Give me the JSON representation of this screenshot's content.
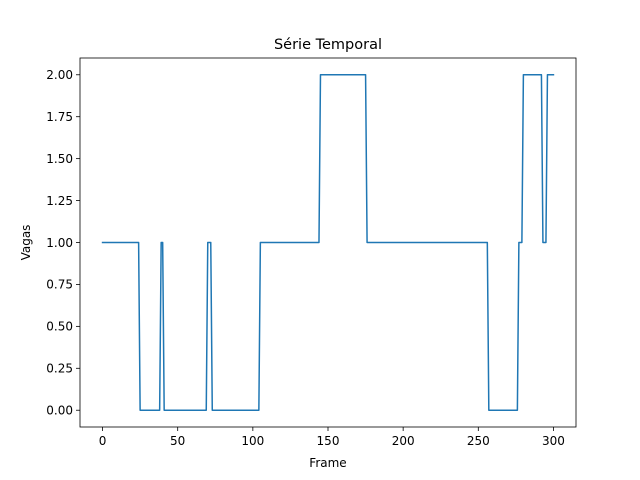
{
  "chart_data": {
    "type": "line",
    "title": "Série Temporal",
    "xlabel": "Frame",
    "ylabel": "Vagas",
    "xlim": [
      -15,
      315
    ],
    "ylim": [
      -0.1,
      2.1
    ],
    "grid": false,
    "legend": "none",
    "xticks": [
      0,
      50,
      100,
      150,
      200,
      250,
      300
    ],
    "yticks": [
      "0.00",
      "0.25",
      "0.50",
      "0.75",
      "1.00",
      "1.25",
      "1.50",
      "1.75",
      "2.00"
    ],
    "series": [
      {
        "color": "#1f77b4",
        "points": [
          [
            0,
            1
          ],
          [
            24,
            1
          ],
          [
            25,
            0
          ],
          [
            38,
            0
          ],
          [
            39,
            1
          ],
          [
            40,
            1
          ],
          [
            41,
            0
          ],
          [
            69,
            0
          ],
          [
            70,
            1
          ],
          [
            72,
            1
          ],
          [
            73,
            0
          ],
          [
            104,
            0
          ],
          [
            105,
            1
          ],
          [
            144,
            1
          ],
          [
            145,
            2
          ],
          [
            175,
            2
          ],
          [
            176,
            1
          ],
          [
            256,
            1
          ],
          [
            257,
            0
          ],
          [
            276,
            0
          ],
          [
            277,
            1
          ],
          [
            279,
            1
          ],
          [
            280,
            2
          ],
          [
            292,
            2
          ],
          [
            293,
            1
          ],
          [
            295,
            1
          ],
          [
            296,
            2
          ],
          [
            300,
            2
          ]
        ]
      }
    ]
  }
}
